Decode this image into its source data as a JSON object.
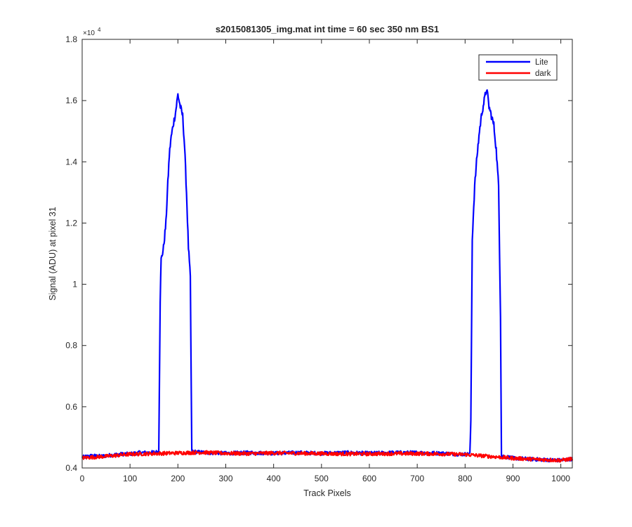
{
  "chart_data": {
    "type": "line",
    "title": "s2015081305_img.mat int time = 60 sec  350 nm BS1",
    "xlabel": "Track Pixels",
    "ylabel": "Signal (ADU) at pixel 31",
    "y_exponent_label": "×10",
    "y_exponent_power": "4",
    "y_multiplier": 10000,
    "xlim": [
      0,
      1024
    ],
    "ylim": [
      0.4,
      1.8
    ],
    "x_ticks": [
      0,
      100,
      200,
      300,
      400,
      500,
      600,
      700,
      800,
      900,
      1000
    ],
    "y_ticks": [
      0.4,
      0.6,
      0.8,
      1.0,
      1.2,
      1.4,
      1.6,
      1.8
    ],
    "y_tick_labels": [
      "0.4",
      "0.6",
      "0.8",
      "1",
      "1.2",
      "1.4",
      "1.6",
      "1.8"
    ],
    "grid": false,
    "legend_position": "top-right",
    "series": [
      {
        "name": "Lite",
        "color": "#0000ff",
        "points": [
          [
            0,
            0.435
          ],
          [
            20,
            0.44
          ],
          [
            40,
            0.438
          ],
          [
            60,
            0.442
          ],
          [
            80,
            0.445
          ],
          [
            100,
            0.446
          ],
          [
            120,
            0.45
          ],
          [
            140,
            0.45
          ],
          [
            155,
            0.452
          ],
          [
            160,
            0.452
          ],
          [
            163,
            0.95
          ],
          [
            165,
            1.08
          ],
          [
            170,
            1.12
          ],
          [
            175,
            1.2
          ],
          [
            178,
            1.3
          ],
          [
            182,
            1.42
          ],
          [
            185,
            1.47
          ],
          [
            190,
            1.52
          ],
          [
            195,
            1.56
          ],
          [
            200,
            1.62
          ],
          [
            205,
            1.58
          ],
          [
            210,
            1.55
          ],
          [
            214,
            1.45
          ],
          [
            218,
            1.3
          ],
          [
            222,
            1.12
          ],
          [
            226,
            1.02
          ],
          [
            229,
            0.455
          ],
          [
            240,
            0.452
          ],
          [
            260,
            0.45
          ],
          [
            300,
            0.448
          ],
          [
            350,
            0.45
          ],
          [
            400,
            0.448
          ],
          [
            450,
            0.45
          ],
          [
            500,
            0.448
          ],
          [
            550,
            0.45
          ],
          [
            600,
            0.448
          ],
          [
            650,
            0.45
          ],
          [
            700,
            0.45
          ],
          [
            750,
            0.448
          ],
          [
            790,
            0.445
          ],
          [
            805,
            0.445
          ],
          [
            810,
            0.447
          ],
          [
            812,
            0.55
          ],
          [
            815,
            1.15
          ],
          [
            820,
            1.32
          ],
          [
            825,
            1.42
          ],
          [
            830,
            1.5
          ],
          [
            835,
            1.56
          ],
          [
            840,
            1.6
          ],
          [
            845,
            1.64
          ],
          [
            850,
            1.58
          ],
          [
            855,
            1.55
          ],
          [
            860,
            1.52
          ],
          [
            865,
            1.44
          ],
          [
            870,
            1.32
          ],
          [
            874,
            0.9
          ],
          [
            876,
            0.44
          ],
          [
            900,
            0.432
          ],
          [
            950,
            0.428
          ],
          [
            1000,
            0.425
          ],
          [
            1024,
            0.43
          ]
        ]
      },
      {
        "name": "dark",
        "color": "#ff0000",
        "points": [
          [
            0,
            0.433
          ],
          [
            50,
            0.438
          ],
          [
            100,
            0.445
          ],
          [
            150,
            0.447
          ],
          [
            200,
            0.449
          ],
          [
            250,
            0.451
          ],
          [
            300,
            0.448
          ],
          [
            350,
            0.447
          ],
          [
            400,
            0.449
          ],
          [
            450,
            0.448
          ],
          [
            500,
            0.447
          ],
          [
            550,
            0.446
          ],
          [
            600,
            0.446
          ],
          [
            650,
            0.447
          ],
          [
            700,
            0.447
          ],
          [
            750,
            0.446
          ],
          [
            800,
            0.444
          ],
          [
            850,
            0.438
          ],
          [
            900,
            0.432
          ],
          [
            950,
            0.428
          ],
          [
            1000,
            0.425
          ],
          [
            1024,
            0.43
          ]
        ]
      }
    ]
  }
}
